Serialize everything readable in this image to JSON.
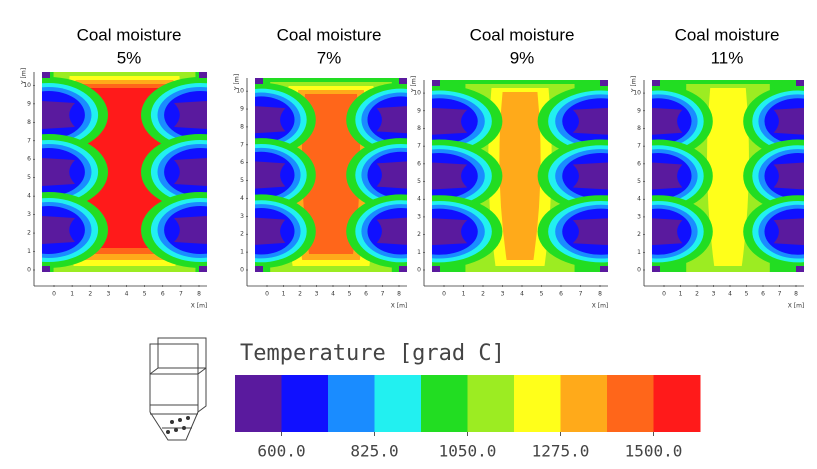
{
  "panels": [
    {
      "title": "Coal moisture",
      "subtitle": "5%"
    },
    {
      "title": "Coal moisture",
      "subtitle": "7%"
    },
    {
      "title": "Coal moisture",
      "subtitle": "9%"
    },
    {
      "title": "Coal moisture",
      "subtitle": "11%"
    }
  ],
  "x_label": "X [m]",
  "y_label": "Y [m]",
  "x_ticks": [
    "0",
    "1",
    "2",
    "3",
    "4",
    "5",
    "6",
    "7",
    "8"
  ],
  "y_ticks": [
    "0",
    "1",
    "2",
    "3",
    "4",
    "5",
    "6",
    "7",
    "8",
    "9",
    "10"
  ],
  "legend": {
    "title": "Temperature [grad C]",
    "colors": [
      "#5a1a9e",
      "#1010ff",
      "#1a8cff",
      "#22f0f0",
      "#22dd22",
      "#9cec22",
      "#ffff1a",
      "#ffaa1a",
      "#ff661a",
      "#ff1a1a"
    ],
    "labels": [
      "600.0",
      "825.0",
      "1050.0",
      "1275.0",
      "1500.0"
    ]
  }
}
